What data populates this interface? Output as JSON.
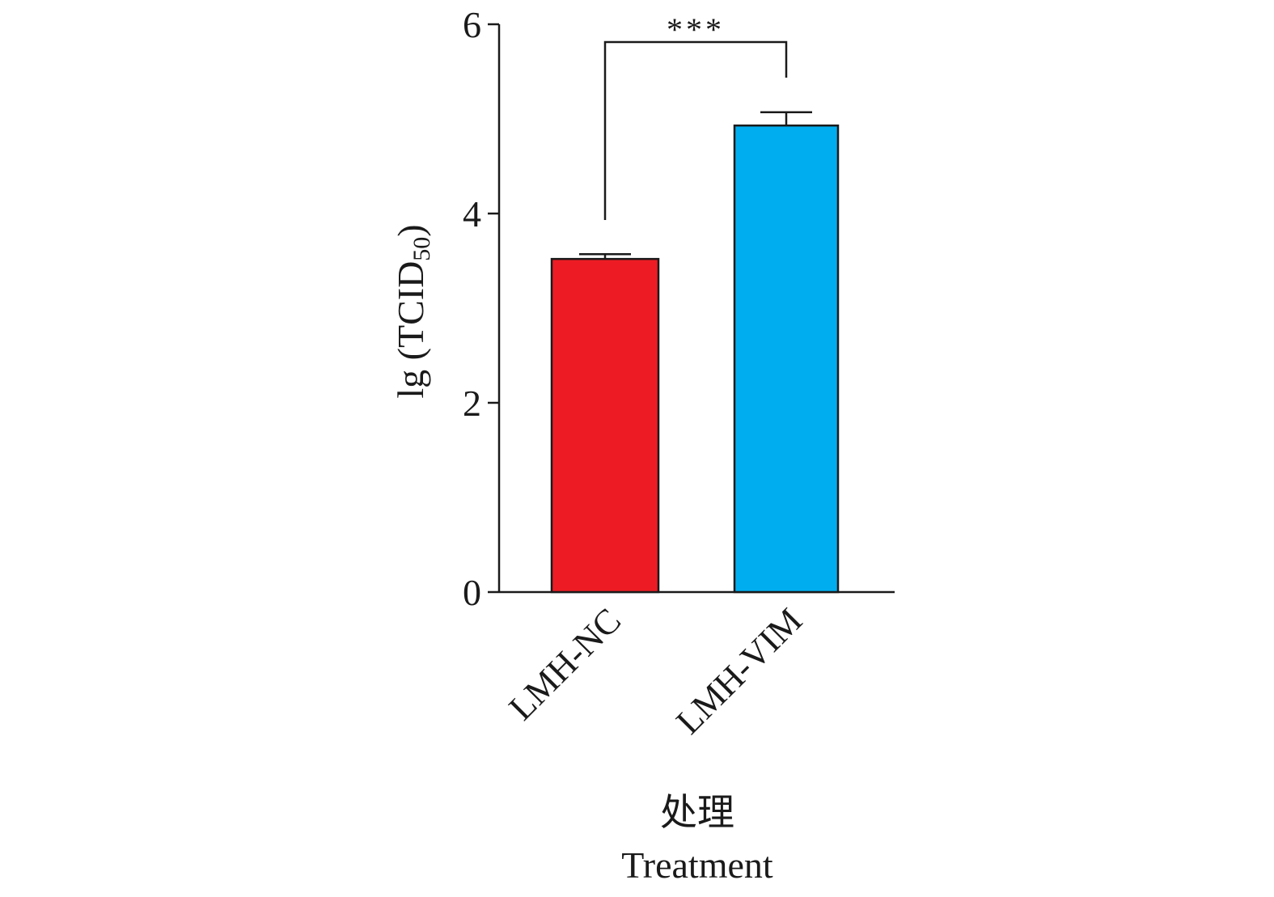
{
  "chart_data": {
    "type": "bar",
    "categories": [
      "LMH-NC",
      "LMH-VIM"
    ],
    "values": [
      3.52,
      4.93
    ],
    "errors": [
      0.05,
      0.14
    ],
    "colors": [
      "#ed1c24",
      "#00aeef"
    ],
    "ylabel_main": "lg (TCID",
    "ylabel_sub": "50",
    "ylabel_end": ")",
    "xlabel_cn": "处理",
    "xlabel_en": "Treatment",
    "ylim": [
      0,
      6
    ],
    "yticks": [
      0,
      2,
      4,
      6
    ],
    "significance": {
      "between": [
        0,
        1
      ],
      "label": "***"
    },
    "grid": false,
    "legend": "none"
  }
}
